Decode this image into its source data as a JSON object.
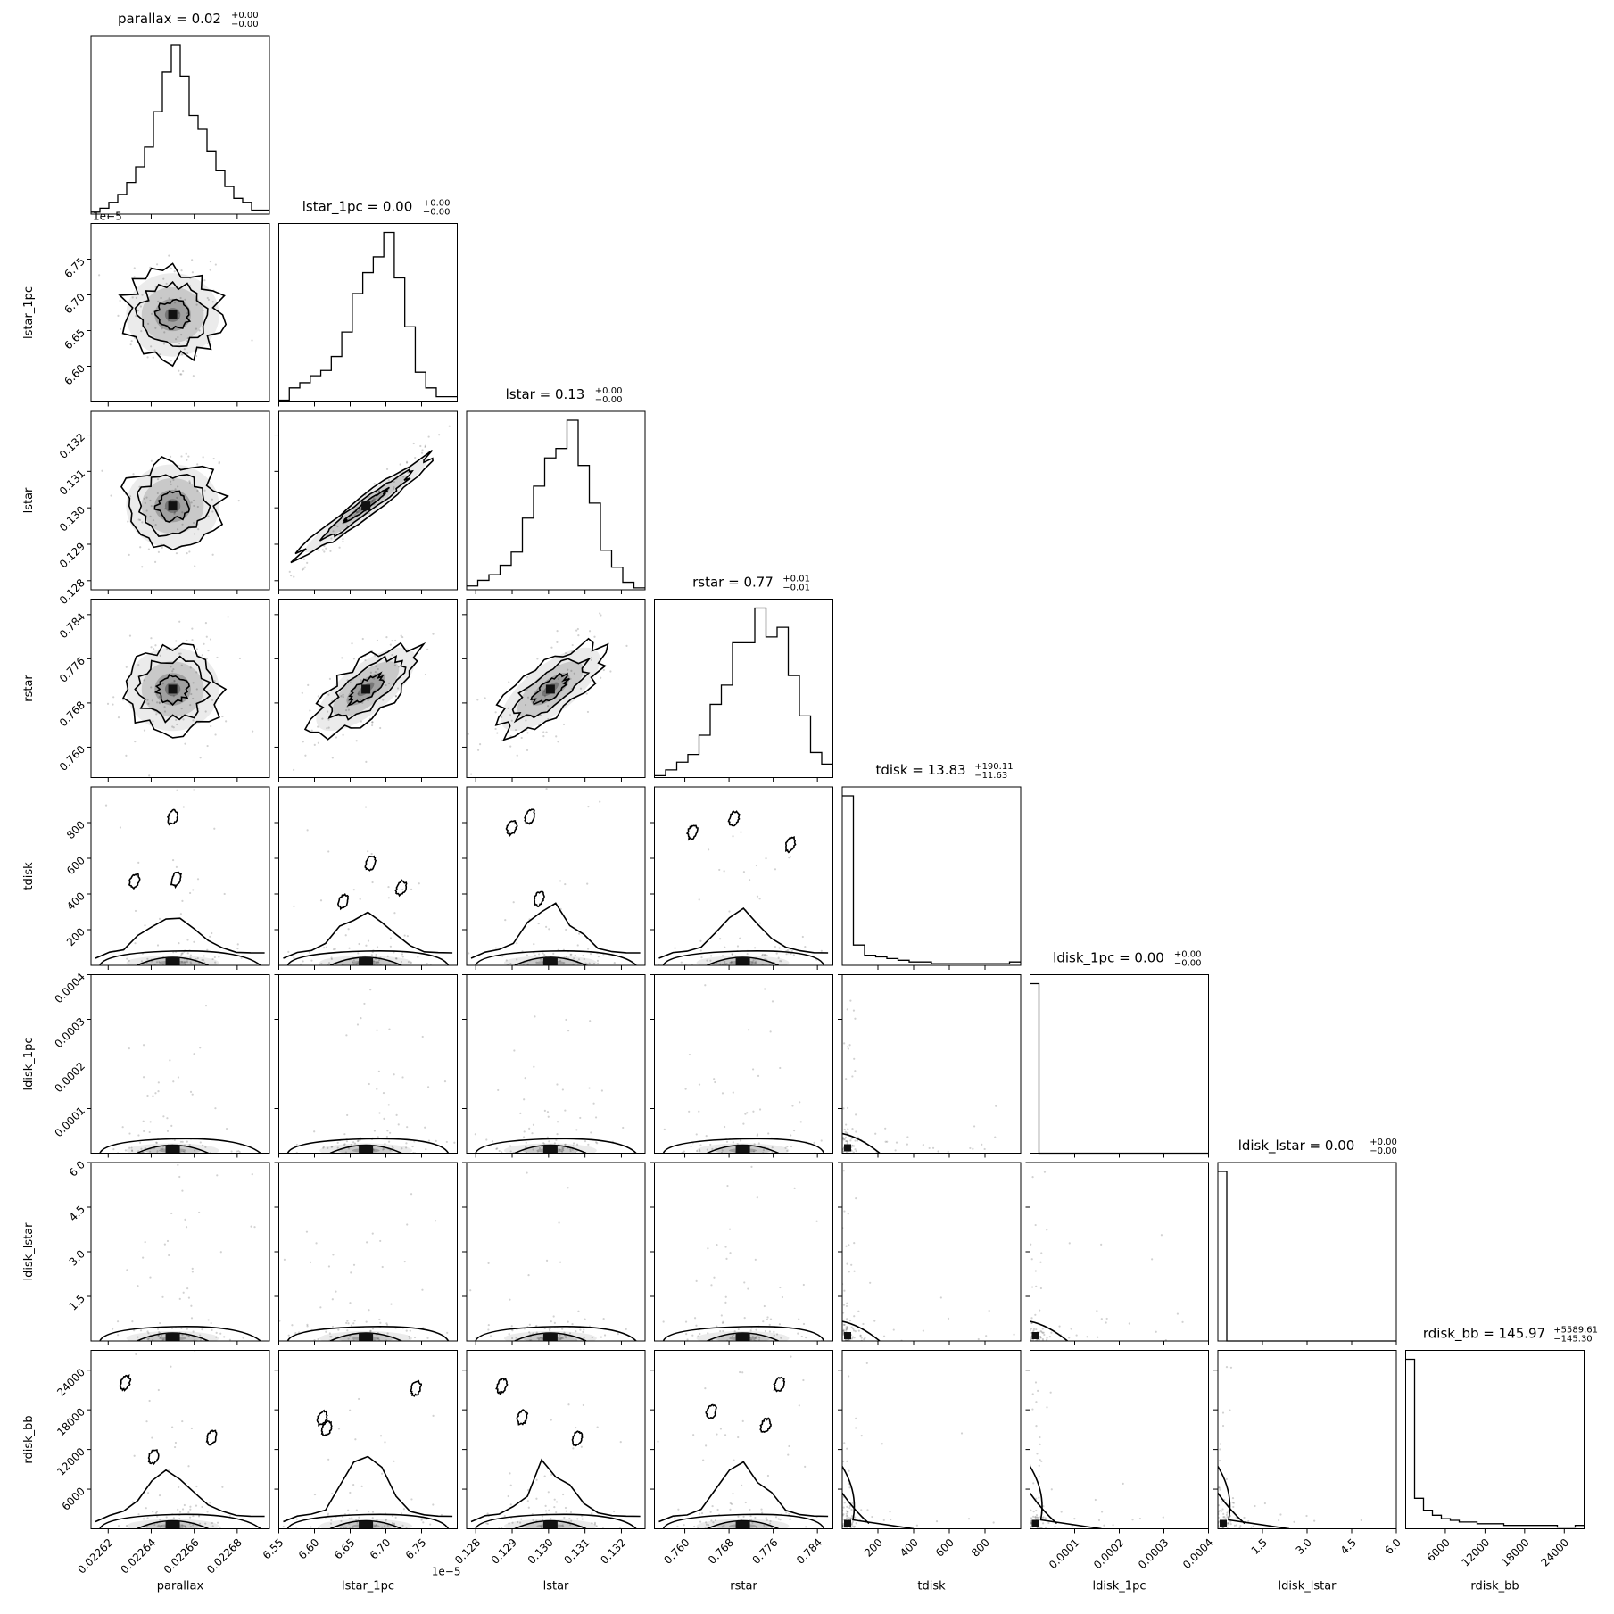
{
  "chart_data": {
    "type": "corner",
    "parameters": [
      {
        "name": "parallax",
        "xlabel": "parallax",
        "ylabel": "",
        "title": {
          "main": "parallax = 0.02",
          "plus": "+0.00",
          "minus": "−0.00"
        },
        "range": [
          0.022612,
          0.022695
        ],
        "ticks": [
          0.02262,
          0.02264,
          0.02266,
          0.02268
        ],
        "tick_labels": [
          "0.02262",
          "0.02264",
          "0.02266",
          "0.02268"
        ],
        "hist": [
          1,
          3,
          6,
          10,
          16,
          24,
          34,
          52,
          72,
          86,
          70,
          50,
          43,
          32,
          22,
          14,
          8,
          6,
          2,
          2
        ],
        "center": 0.02265,
        "sigma": 9.5e-06
      },
      {
        "name": "lstar_1pc",
        "xlabel": "lstar_1pc",
        "ylabel": "lstar_1pc",
        "offset_label": "1e−5",
        "title": {
          "main": "lstar_1pc = 0.00",
          "plus": "+0.00",
          "minus": "−0.00"
        },
        "range": [
          6.55,
          6.8
        ],
        "ticks": [
          6.55,
          6.6,
          6.65,
          6.7,
          6.75
        ],
        "tick_labels": [
          "6.55",
          "6.60",
          "6.65",
          "6.70",
          "6.75"
        ],
        "hist": [
          1,
          8,
          11,
          15,
          18,
          26,
          40,
          62,
          74,
          83,
          97,
          71,
          43,
          17,
          8,
          3,
          3
        ],
        "center": 6.672,
        "sigma": 0.035
      },
      {
        "name": "lstar",
        "xlabel": "lstar",
        "ylabel": "lstar",
        "title": {
          "main": "lstar = 0.13",
          "plus": "+0.00",
          "minus": "−0.00"
        },
        "range": [
          0.12775,
          0.13265
        ],
        "ticks": [
          0.128,
          0.129,
          0.13,
          0.131,
          0.132
        ],
        "tick_labels": [
          "0.128",
          "0.129",
          "0.130",
          "0.131",
          "0.132"
        ],
        "hist": [
          2,
          5,
          8,
          13,
          20,
          38,
          55,
          70,
          75,
          90,
          66,
          46,
          21,
          12,
          4,
          1
        ],
        "center": 0.13005,
        "sigma": 0.00068
      },
      {
        "name": "rstar",
        "xlabel": "rstar",
        "ylabel": "rstar",
        "title": {
          "main": "rstar = 0.77",
          "plus": "+0.01",
          "minus": "−0.01"
        },
        "range": [
          0.7545,
          0.7868
        ],
        "ticks": [
          0.76,
          0.768,
          0.776,
          0.784
        ],
        "tick_labels": [
          "0.760",
          "0.768",
          "0.776",
          "0.784"
        ],
        "hist": [
          1,
          4,
          8,
          12,
          22,
          38,
          48,
          70,
          70,
          88,
          73,
          78,
          53,
          32,
          13,
          7
        ],
        "center": 0.7705,
        "sigma": 0.0048
      },
      {
        "name": "tdisk",
        "xlabel": "tdisk",
        "ylabel": "tdisk",
        "title": {
          "main": "tdisk = 13.83",
          "plus": "+190.11",
          "minus": "−11.63"
        },
        "range": [
          0,
          1000
        ],
        "ticks": [
          200,
          400,
          600,
          800
        ],
        "tick_labels": [
          "200",
          "400",
          "600",
          "800"
        ],
        "hist": [
          100,
          12,
          6,
          5,
          4,
          3,
          2,
          2,
          1,
          1,
          1,
          1,
          1,
          1,
          1,
          2
        ],
        "center": 30,
        "sigma": 60
      },
      {
        "name": "ldisk_1pc",
        "xlabel": "ldisk_1pc",
        "ylabel": "ldisk_1pc",
        "title": {
          "main": "ldisk_1pc = 0.00",
          "plus": "+0.00",
          "minus": "−0.00"
        },
        "range": [
          0,
          0.0004
        ],
        "ticks": [
          0.0001,
          0.0002,
          0.0003,
          0.0004
        ],
        "tick_labels": [
          "0.0001",
          "0.0002",
          "0.0003",
          "0.0004"
        ],
        "hist": [
          100,
          0,
          0,
          0,
          0,
          0,
          0,
          0,
          0,
          0,
          0,
          0,
          0,
          0,
          0,
          0,
          0,
          0,
          0,
          0
        ],
        "center": 8e-06,
        "sigma": 8e-06
      },
      {
        "name": "ldisk_lstar",
        "xlabel": "ldisk_lstar",
        "ylabel": "ldisk_lstar",
        "title": {
          "main": "ldisk_lstar = 0.00",
          "plus": "+0.00",
          "minus": "−0.00"
        },
        "range": [
          0,
          6.0
        ],
        "ticks": [
          1.5,
          3.0,
          4.5,
          6.0
        ],
        "tick_labels": [
          "1.5",
          "3.0",
          "4.5",
          "6.0"
        ],
        "hist": [
          100,
          0,
          0,
          0,
          0,
          0,
          0,
          0,
          0,
          0,
          0,
          0,
          0,
          0,
          0,
          0,
          0,
          0,
          0,
          0
        ],
        "center": 0.12,
        "sigma": 0.12
      },
      {
        "name": "rdisk_bb",
        "xlabel": "rdisk_bb",
        "ylabel": "rdisk_bb",
        "title": {
          "main": "rdisk_bb = 145.97",
          "plus": "+5589.61",
          "minus": "−145.30"
        },
        "range": [
          0,
          27000
        ],
        "ticks": [
          6000,
          12000,
          18000,
          24000
        ],
        "tick_labels": [
          "6000",
          "12000",
          "18000",
          "24000"
        ],
        "hist": [
          100,
          18,
          11,
          8,
          6,
          5,
          4,
          4,
          3,
          3,
          3,
          2,
          2,
          2,
          2,
          2,
          2,
          1,
          1,
          2
        ],
        "center": 500,
        "sigma": 1200
      }
    ],
    "ytick_overrides": {
      "lstar_1pc": {
        "ticks": [
          6.6,
          6.65,
          6.7,
          6.75
        ],
        "labels": [
          "6.60",
          "6.65",
          "6.70",
          "6.75"
        ]
      },
      "tdisk": {
        "ticks": [
          200,
          400,
          600,
          800
        ],
        "labels": [
          "200",
          "400",
          "600",
          "800"
        ]
      }
    },
    "line_color": "#000000",
    "density_color": "#000000"
  }
}
